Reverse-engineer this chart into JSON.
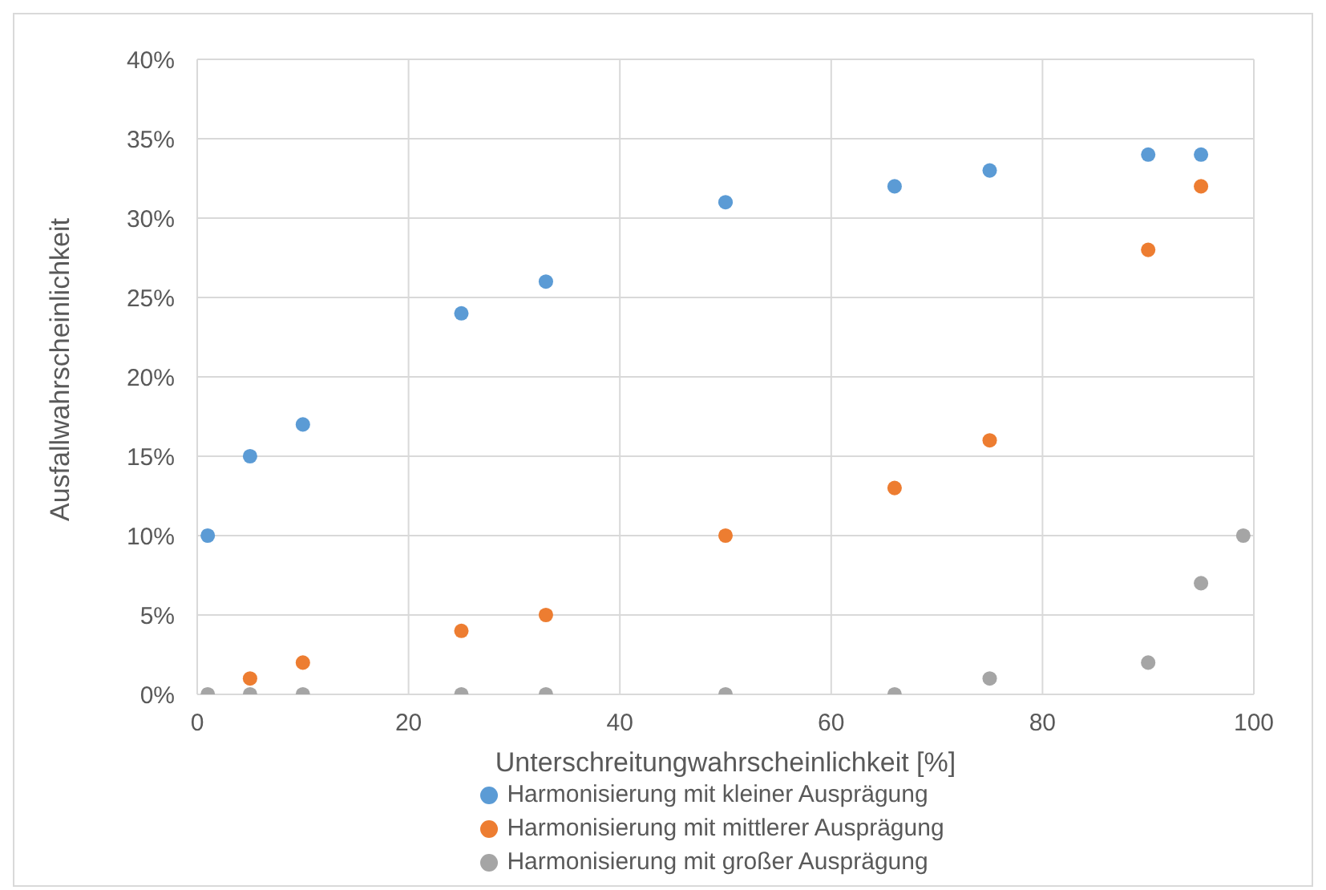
{
  "chart_data": {
    "type": "scatter",
    "xlabel": "Unterschreitungwahrscheinlichkeit [%]",
    "ylabel": "Ausfallwahrscheinlichkeit",
    "xlim": [
      0,
      100
    ],
    "xticks": [
      0,
      20,
      40,
      60,
      80,
      100
    ],
    "ylim": [
      0,
      40
    ],
    "yticks": [
      {
        "value": 0,
        "label": "0%"
      },
      {
        "value": 5,
        "label": "5%"
      },
      {
        "value": 10,
        "label": "10%"
      },
      {
        "value": 15,
        "label": "15%"
      },
      {
        "value": 20,
        "label": "20%"
      },
      {
        "value": 25,
        "label": "25%"
      },
      {
        "value": 30,
        "label": "30%"
      },
      {
        "value": 35,
        "label": "35%"
      },
      {
        "value": 40,
        "label": "40%"
      }
    ],
    "grid": true,
    "legend": "bottom",
    "marker": "circle",
    "series": [
      {
        "name": "Harmonisierung mit kleiner Ausprägung",
        "color": "#5b9bd5",
        "x": [
          1,
          5,
          10,
          25,
          33,
          50,
          66,
          75,
          90,
          95
        ],
        "values": [
          10,
          15,
          17,
          24,
          26,
          31,
          32,
          33,
          34,
          34
        ]
      },
      {
        "name": "Harmonisierung mit mittlerer Ausprägung",
        "color": "#ed7d31",
        "x": [
          5,
          10,
          25,
          33,
          50,
          66,
          75,
          90,
          95
        ],
        "values": [
          1,
          2,
          4,
          5,
          10,
          13,
          16,
          28,
          32
        ]
      },
      {
        "name": "Harmonisierung mit großer Ausprägung",
        "color": "#a5a5a5",
        "x": [
          1,
          5,
          10,
          25,
          33,
          50,
          66,
          75,
          90,
          95,
          99
        ],
        "values": [
          0,
          0,
          0,
          0,
          0,
          0,
          0,
          1,
          2,
          7,
          10
        ]
      }
    ]
  }
}
